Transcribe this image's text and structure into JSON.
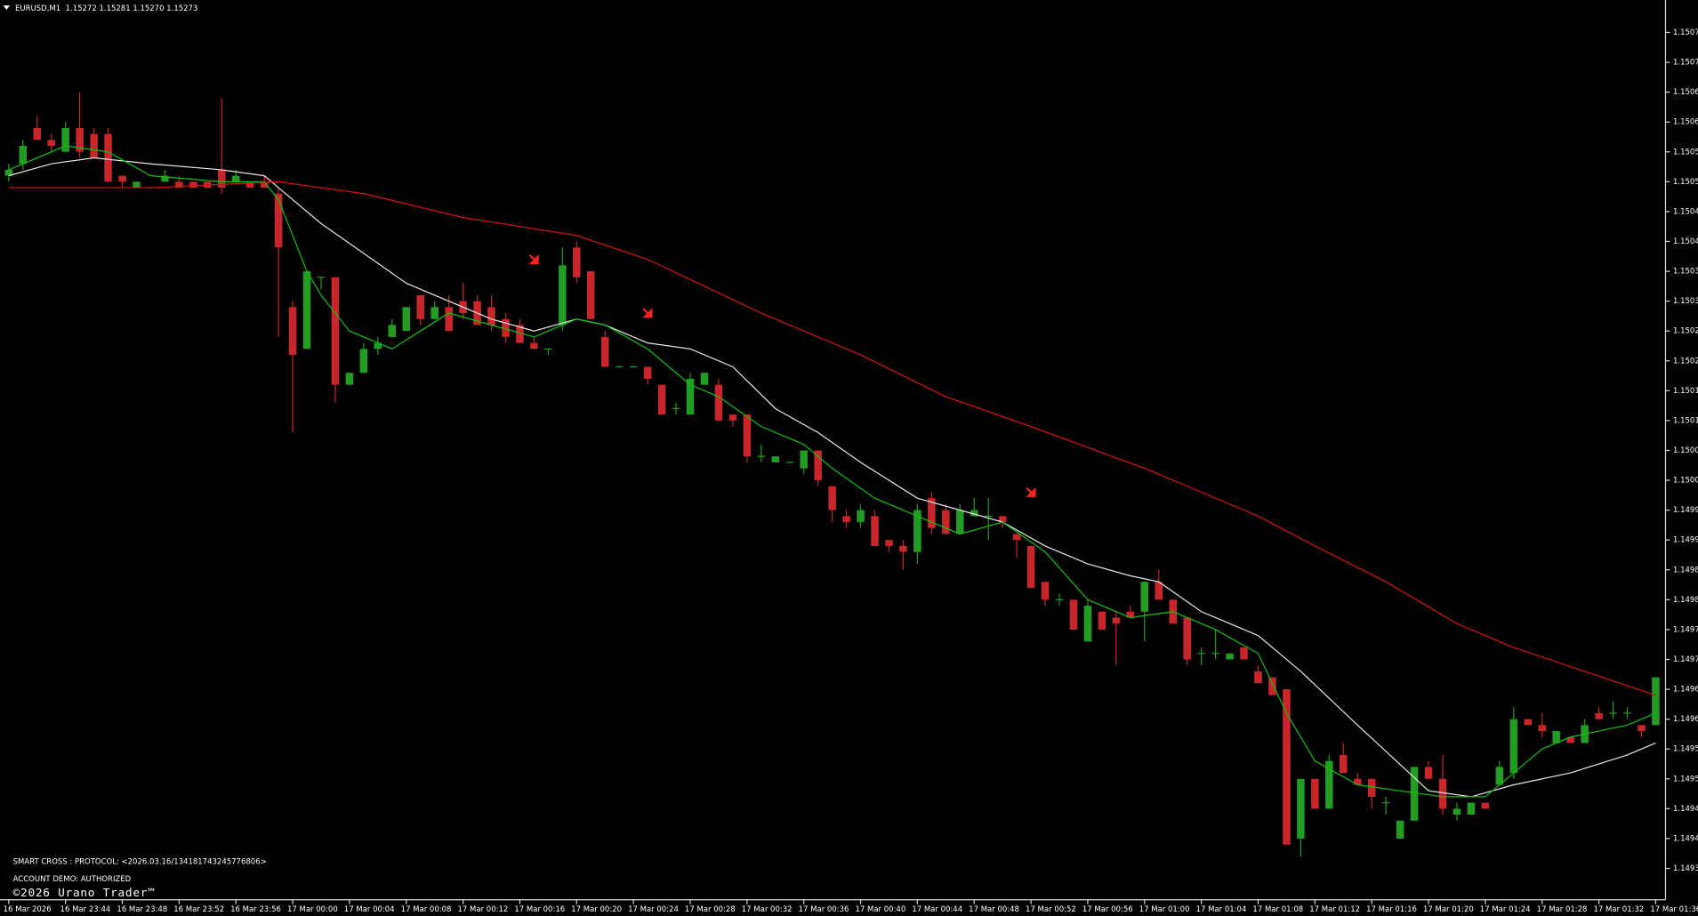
{
  "chart_data": {
    "type": "candlestick",
    "title": "EURUSD,M1  1.15272 1.15281 1.15270 1.15273",
    "annotations": [
      "SMART CROSS : PROTOCOL: <2026.03.16/134181743245776806>",
      "ACCOUNT DEMO: AUTHORIZED",
      "©2026 Urano Trader™"
    ],
    "up_color": "#229c22",
    "down_color": "#c8262c",
    "ylim": [
      1.1493,
      1.1508
    ],
    "yticks": [
      1.15075,
      {
        "value": 1.1507,
        "label": "1.15070"
      },
      1.15065,
      {
        "value": 1.1506,
        "label": "1.15060"
      },
      1.15055,
      {
        "value": 1.1505,
        "label": "1.15050"
      },
      1.15045,
      {
        "value": 1.1504,
        "label": "1.15040"
      },
      1.15035,
      {
        "value": 1.1503,
        "label": "1.15030"
      },
      1.15025,
      {
        "value": 1.1502,
        "label": "1.15020"
      },
      1.15015,
      {
        "value": 1.1501,
        "label": "1.15010"
      },
      1.15005,
      {
        "value": 1.15,
        "label": "1.15000"
      },
      1.14995,
      {
        "value": 1.1499,
        "label": "1.14990"
      },
      1.14985,
      {
        "value": 1.1498,
        "label": "1.14980"
      },
      1.14975,
      {
        "value": 1.1497,
        "label": "1.14970"
      },
      1.14965,
      {
        "value": 1.1496,
        "label": "1.14960"
      },
      1.14955,
      {
        "value": 1.1495,
        "label": "1.14950"
      },
      1.14945,
      {
        "value": 1.1494,
        "label": "1.14940"
      },
      1.14935
    ],
    "categories": [
      "16 Mar 2026",
      null,
      null,
      null,
      "16 Mar 23:44",
      null,
      null,
      null,
      "16 Mar 23:48",
      null,
      null,
      null,
      "16 Mar 23:52",
      null,
      null,
      null,
      "16 Mar 23:56",
      null,
      null,
      null,
      "17 Mar 00:00",
      null,
      null,
      null,
      "17 Mar 00:04",
      null,
      null,
      null,
      "17 Mar 00:08",
      null,
      null,
      null,
      "17 Mar 00:12",
      null,
      null,
      null,
      "17 Mar 00:16",
      null,
      null,
      null,
      "17 Mar 00:20",
      null,
      null,
      null,
      "17 Mar 00:24",
      null,
      null,
      null,
      "17 Mar 00:28",
      null,
      null,
      null,
      "17 Mar 00:32",
      null,
      null,
      null,
      "17 Mar 00:36",
      null,
      null,
      null,
      "17 Mar 00:40",
      null,
      null,
      null,
      "17 Mar 00:44",
      null,
      null,
      null,
      "17 Mar 00:48",
      null,
      null,
      null,
      "17 Mar 00:52",
      null,
      null,
      null,
      "17 Mar 00:56",
      null,
      null,
      null,
      "17 Mar 01:00",
      null,
      null,
      null,
      "17 Mar 01:04",
      null,
      null,
      null,
      "17 Mar 01:08",
      null,
      null,
      null,
      "17 Mar 01:12",
      null,
      null,
      null,
      "17 Mar 01:16",
      null,
      null,
      null,
      "17 Mar 01:20",
      null,
      null,
      null,
      "17 Mar 01:24",
      null,
      null,
      null,
      "17 Mar 01:28",
      null,
      null,
      null,
      "17 Mar 01:32",
      null,
      null,
      null,
      "17 Mar 01:36"
    ],
    "open": [
      1.15051,
      1.15053,
      1.15059,
      1.15057,
      1.15055,
      1.15059,
      1.15058,
      1.15058,
      1.15051,
      1.15049,
      1.15049,
      1.1505,
      1.1505,
      1.1505,
      1.1505,
      1.15052,
      1.1505,
      1.1505,
      1.1505,
      1.15048,
      1.15029,
      1.15022,
      1.15034,
      1.15034,
      1.15016,
      1.15018,
      1.15022,
      1.15024,
      1.15025,
      1.15031,
      1.15027,
      1.15029,
      1.1503,
      1.1503,
      1.15029,
      1.15027,
      1.15026,
      1.15023,
      1.15022,
      1.15026,
      1.15039,
      1.15035,
      1.15024,
      1.15019,
      1.15019,
      1.15019,
      1.15016,
      1.15012,
      1.15011,
      1.15016,
      1.15016,
      1.15011,
      1.15011,
      1.15004,
      1.15003,
      1.15003,
      1.15002,
      1.15005,
      1.14999,
      1.14994,
      1.14993,
      1.14994,
      1.1499,
      1.14989,
      1.14988,
      1.14997,
      1.14995,
      1.14991,
      1.14994,
      1.14994,
      1.14994,
      1.14991,
      1.14989,
      1.14983,
      1.1498,
      1.1498,
      1.14973,
      1.14978,
      1.14977,
      1.14978,
      1.14978,
      1.14983,
      1.1498,
      1.14977,
      1.14971,
      1.14971,
      1.1497,
      1.14972,
      1.14968,
      1.14967,
      1.14965,
      1.1494,
      1.1495,
      1.14945,
      1.14954,
      1.1495,
      1.1495,
      1.14946,
      1.1494,
      1.14943,
      1.14952,
      1.1495,
      1.14944,
      1.14944,
      1.14946,
      1.14949,
      1.14951,
      1.1496,
      1.14959,
      1.14956,
      1.14957,
      1.14956,
      1.14961,
      1.14961,
      1.14961,
      1.14959,
      1.14959
    ],
    "high": [
      1.15053,
      1.15057,
      1.15061,
      1.15058,
      1.1506,
      1.15065,
      1.15059,
      1.15059,
      1.15051,
      1.1505,
      1.15049,
      1.15052,
      1.15051,
      1.1505,
      1.1505,
      1.15064,
      1.15052,
      1.1505,
      1.15051,
      1.15049,
      1.1503,
      1.15035,
      1.15034,
      1.15034,
      1.15018,
      1.15023,
      1.15024,
      1.15027,
      1.15029,
      1.15031,
      1.1503,
      1.15031,
      1.15033,
      1.15031,
      1.15031,
      1.15028,
      1.15027,
      1.15024,
      1.15022,
      1.15039,
      1.1504,
      1.15035,
      1.15025,
      1.15019,
      1.15019,
      1.15019,
      1.15016,
      1.15013,
      1.15018,
      1.15018,
      1.15017,
      1.15011,
      1.15011,
      1.15006,
      1.15004,
      1.15003,
      1.15005,
      1.15005,
      1.14999,
      1.14995,
      1.14996,
      1.14995,
      1.1499,
      1.1499,
      1.14996,
      1.14998,
      1.14996,
      1.14996,
      1.14997,
      1.14997,
      1.14994,
      1.14991,
      1.14989,
      1.14983,
      1.14981,
      1.1498,
      1.1498,
      1.14978,
      1.14978,
      1.14979,
      1.14983,
      1.14985,
      1.1498,
      1.14977,
      1.14972,
      1.14975,
      1.14971,
      1.14972,
      1.14969,
      1.14967,
      1.14965,
      1.1495,
      1.1495,
      1.14954,
      1.14956,
      1.14951,
      1.1495,
      1.14947,
      1.14943,
      1.14952,
      1.14953,
      1.14954,
      1.14946,
      1.14946,
      1.14946,
      1.14953,
      1.14962,
      1.1496,
      1.14961,
      1.14958,
      1.14957,
      1.1496,
      1.14962,
      1.14963,
      1.14962,
      1.14959,
      1.14967
    ],
    "low": [
      1.1505,
      1.15052,
      1.15057,
      1.15055,
      1.15055,
      1.15054,
      1.15054,
      1.1505,
      1.15049,
      1.15049,
      1.15049,
      1.1505,
      1.15049,
      1.15049,
      1.15049,
      1.15048,
      1.1505,
      1.15049,
      1.15049,
      1.15024,
      1.15008,
      1.15022,
      1.15032,
      1.15013,
      1.15016,
      1.15018,
      1.15021,
      1.15024,
      1.15025,
      1.15026,
      1.15027,
      1.15025,
      1.15027,
      1.15026,
      1.15025,
      1.15023,
      1.15023,
      1.15022,
      1.15021,
      1.15025,
      1.15033,
      1.15027,
      1.15019,
      1.15019,
      1.15019,
      1.15016,
      1.15011,
      1.15011,
      1.15011,
      1.15016,
      1.1501,
      1.15009,
      1.15003,
      1.15003,
      1.15003,
      1.15003,
      1.15001,
      1.14999,
      1.14993,
      1.14992,
      1.14992,
      1.14989,
      1.14988,
      1.14985,
      1.14986,
      1.14991,
      1.14991,
      1.14991,
      1.14994,
      1.1499,
      1.14992,
      1.14987,
      1.14982,
      1.14979,
      1.14979,
      1.14975,
      1.14973,
      1.14975,
      1.14969,
      1.14977,
      1.14973,
      1.1498,
      1.14976,
      1.14969,
      1.14969,
      1.1497,
      1.1497,
      1.1497,
      1.14966,
      1.14964,
      1.14939,
      1.14937,
      1.14945,
      1.14945,
      1.14951,
      1.14949,
      1.14945,
      1.14944,
      1.1494,
      1.14943,
      1.1495,
      1.14944,
      1.14943,
      1.14944,
      1.14945,
      1.14949,
      1.1495,
      1.14959,
      1.14957,
      1.14956,
      1.14956,
      1.14956,
      1.1496,
      1.1496,
      1.1496,
      1.14957,
      1.14959
    ],
    "close": [
      1.15052,
      1.15056,
      1.15057,
      1.15056,
      1.15059,
      1.15055,
      1.15054,
      1.1505,
      1.1505,
      1.1505,
      1.15049,
      1.15051,
      1.15049,
      1.15049,
      1.15049,
      1.15049,
      1.15051,
      1.15049,
      1.15049,
      1.15039,
      1.15021,
      1.15035,
      1.15034,
      1.15016,
      1.15018,
      1.15022,
      1.15023,
      1.15026,
      1.15029,
      1.15027,
      1.15029,
      1.15025,
      1.15028,
      1.15026,
      1.15026,
      1.15024,
      1.15023,
      1.15022,
      1.15022,
      1.15036,
      1.15034,
      1.15027,
      1.15019,
      1.15019,
      1.15019,
      1.15017,
      1.15011,
      1.15012,
      1.15017,
      1.15018,
      1.1501,
      1.1501,
      1.15004,
      1.15004,
      1.15004,
      1.15003,
      1.15005,
      1.15,
      1.14995,
      1.14993,
      1.14995,
      1.14989,
      1.14989,
      1.14988,
      1.14995,
      1.14992,
      1.14991,
      1.14995,
      1.14995,
      1.14994,
      1.14993,
      1.1499,
      1.14982,
      1.1498,
      1.1498,
      1.14975,
      1.14979,
      1.14975,
      1.14976,
      1.14977,
      1.14983,
      1.1498,
      1.14976,
      1.1497,
      1.14971,
      1.14971,
      1.14971,
      1.1497,
      1.14966,
      1.14964,
      1.14939,
      1.1495,
      1.14945,
      1.14953,
      1.14951,
      1.14949,
      1.14947,
      1.14946,
      1.14943,
      1.14952,
      1.1495,
      1.14945,
      1.14945,
      1.14946,
      1.14945,
      1.14952,
      1.1496,
      1.14959,
      1.14958,
      1.14958,
      1.14956,
      1.14959,
      1.1496,
      1.14961,
      1.14961,
      1.14958,
      1.14967
    ],
    "series": [
      {
        "color": "#e6e6e6",
        "x": [
          0,
          3,
          6,
          10,
          15,
          18,
          19,
          22,
          25,
          28,
          31,
          34,
          37,
          40,
          42,
          45,
          48,
          51,
          54,
          57,
          60,
          64,
          67,
          70,
          73,
          76,
          79,
          81,
          84,
          88,
          91,
          95,
          100,
          103,
          106,
          110,
          114,
          116
        ],
        "values": [
          1.15051,
          1.15053,
          1.15054,
          1.15053,
          1.15052,
          1.15051,
          1.15049,
          1.15043,
          1.15038,
          1.15033,
          1.1503,
          1.15027,
          1.15025,
          1.15027,
          1.15026,
          1.15023,
          1.15022,
          1.15019,
          1.15012,
          1.15008,
          1.15003,
          1.14997,
          1.14995,
          1.14993,
          1.14989,
          1.14986,
          1.14984,
          1.14983,
          1.14978,
          1.14974,
          1.14968,
          1.14959,
          1.14948,
          1.14947,
          1.14949,
          1.14951,
          1.14954,
          1.14956
        ]
      },
      {
        "color": "#10c010",
        "x": [
          0,
          4,
          7,
          10,
          15,
          18,
          19,
          21,
          22,
          24,
          27,
          29,
          31,
          34,
          37,
          39,
          40,
          42,
          45,
          48,
          50,
          53,
          56,
          58,
          61,
          64,
          67,
          70,
          73,
          76,
          79,
          82,
          85,
          88,
          89,
          90,
          92,
          95,
          98,
          101,
          104,
          106,
          108,
          110,
          112,
          114,
          116
        ],
        "values": [
          1.15052,
          1.15056,
          1.15055,
          1.15051,
          1.1505,
          1.1505,
          1.15047,
          1.15035,
          1.15031,
          1.15025,
          1.15022,
          1.15025,
          1.15028,
          1.15026,
          1.15024,
          1.15026,
          1.15027,
          1.15026,
          1.15022,
          1.15016,
          1.15014,
          1.15009,
          1.15006,
          1.15002,
          1.14997,
          1.14994,
          1.14991,
          1.14993,
          1.14988,
          1.1498,
          1.14977,
          1.14978,
          1.14975,
          1.14971,
          1.14966,
          1.14961,
          1.14953,
          1.14949,
          1.14948,
          1.14947,
          1.14947,
          1.14951,
          1.14955,
          1.14957,
          1.14958,
          1.14959,
          1.14961
        ]
      },
      {
        "color": "#d41414",
        "x": [
          0,
          10,
          19,
          25,
          32,
          40,
          45,
          53,
          60,
          66,
          72,
          80,
          88,
          92,
          97,
          102,
          106,
          111,
          116
        ],
        "values": [
          1.15049,
          1.15049,
          1.1505,
          1.15048,
          1.15044,
          1.15041,
          1.15037,
          1.15028,
          1.15021,
          1.15014,
          1.15009,
          1.15002,
          1.14994,
          1.14989,
          1.14983,
          1.14976,
          1.14972,
          1.14968,
          1.14964
        ]
      }
    ],
    "signals": {
      "color": "#ff2020",
      "x": [
        37,
        45,
        72
      ],
      "values": [
        1.15037,
        1.15028,
        1.14998
      ]
    }
  }
}
